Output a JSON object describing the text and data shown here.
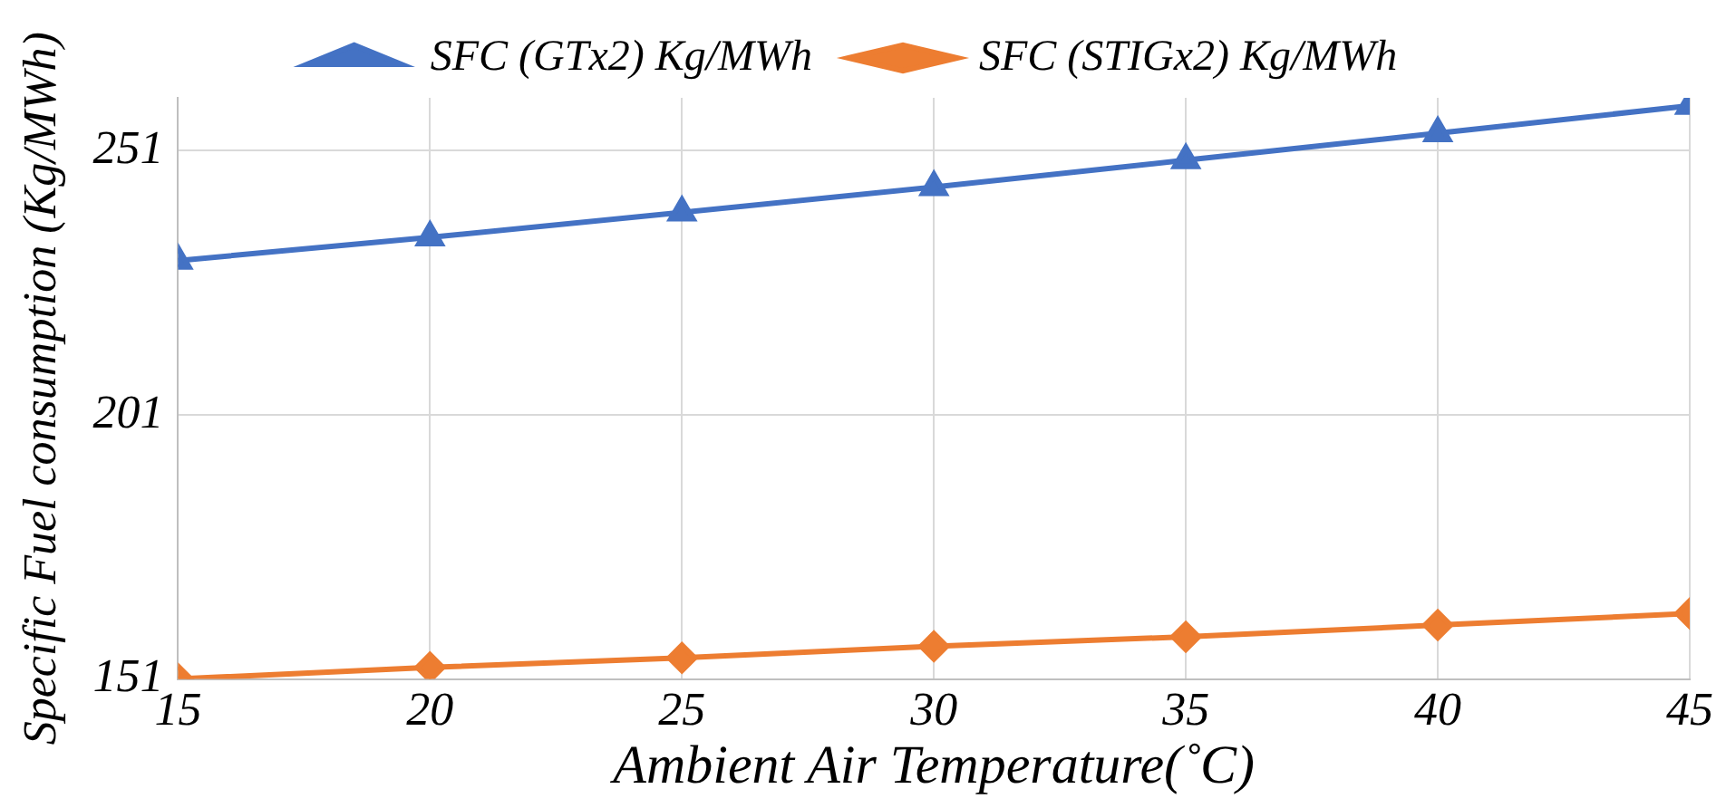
{
  "chart_data": {
    "type": "line",
    "xlabel": "Ambient Air Temperature(˚C)",
    "ylabel": "Specific Fuel consumption (Kg/MWh)",
    "x": [
      15,
      20,
      25,
      30,
      35,
      40,
      45
    ],
    "xlim": [
      15,
      45
    ],
    "xticks": [
      15,
      20,
      25,
      30,
      35,
      40,
      45
    ],
    "ylim": [
      151,
      261
    ],
    "yticks": [
      151,
      201,
      251
    ],
    "grid": true,
    "legend": "top",
    "line_style": "solid",
    "series": [
      {
        "name": "SFC (GTx2) Kg/MWh",
        "color": "#4472c4",
        "marker": "triangle",
        "values": [
          230.2,
          234.6,
          239.3,
          244.1,
          249.2,
          254.3,
          259.5
        ]
      },
      {
        "name": "SFC (STIGx2) Kg/MWh",
        "color": "#ed7d31",
        "marker": "diamond",
        "values": [
          151,
          153.2,
          155,
          157.2,
          159,
          161.2,
          163.4
        ]
      }
    ]
  }
}
